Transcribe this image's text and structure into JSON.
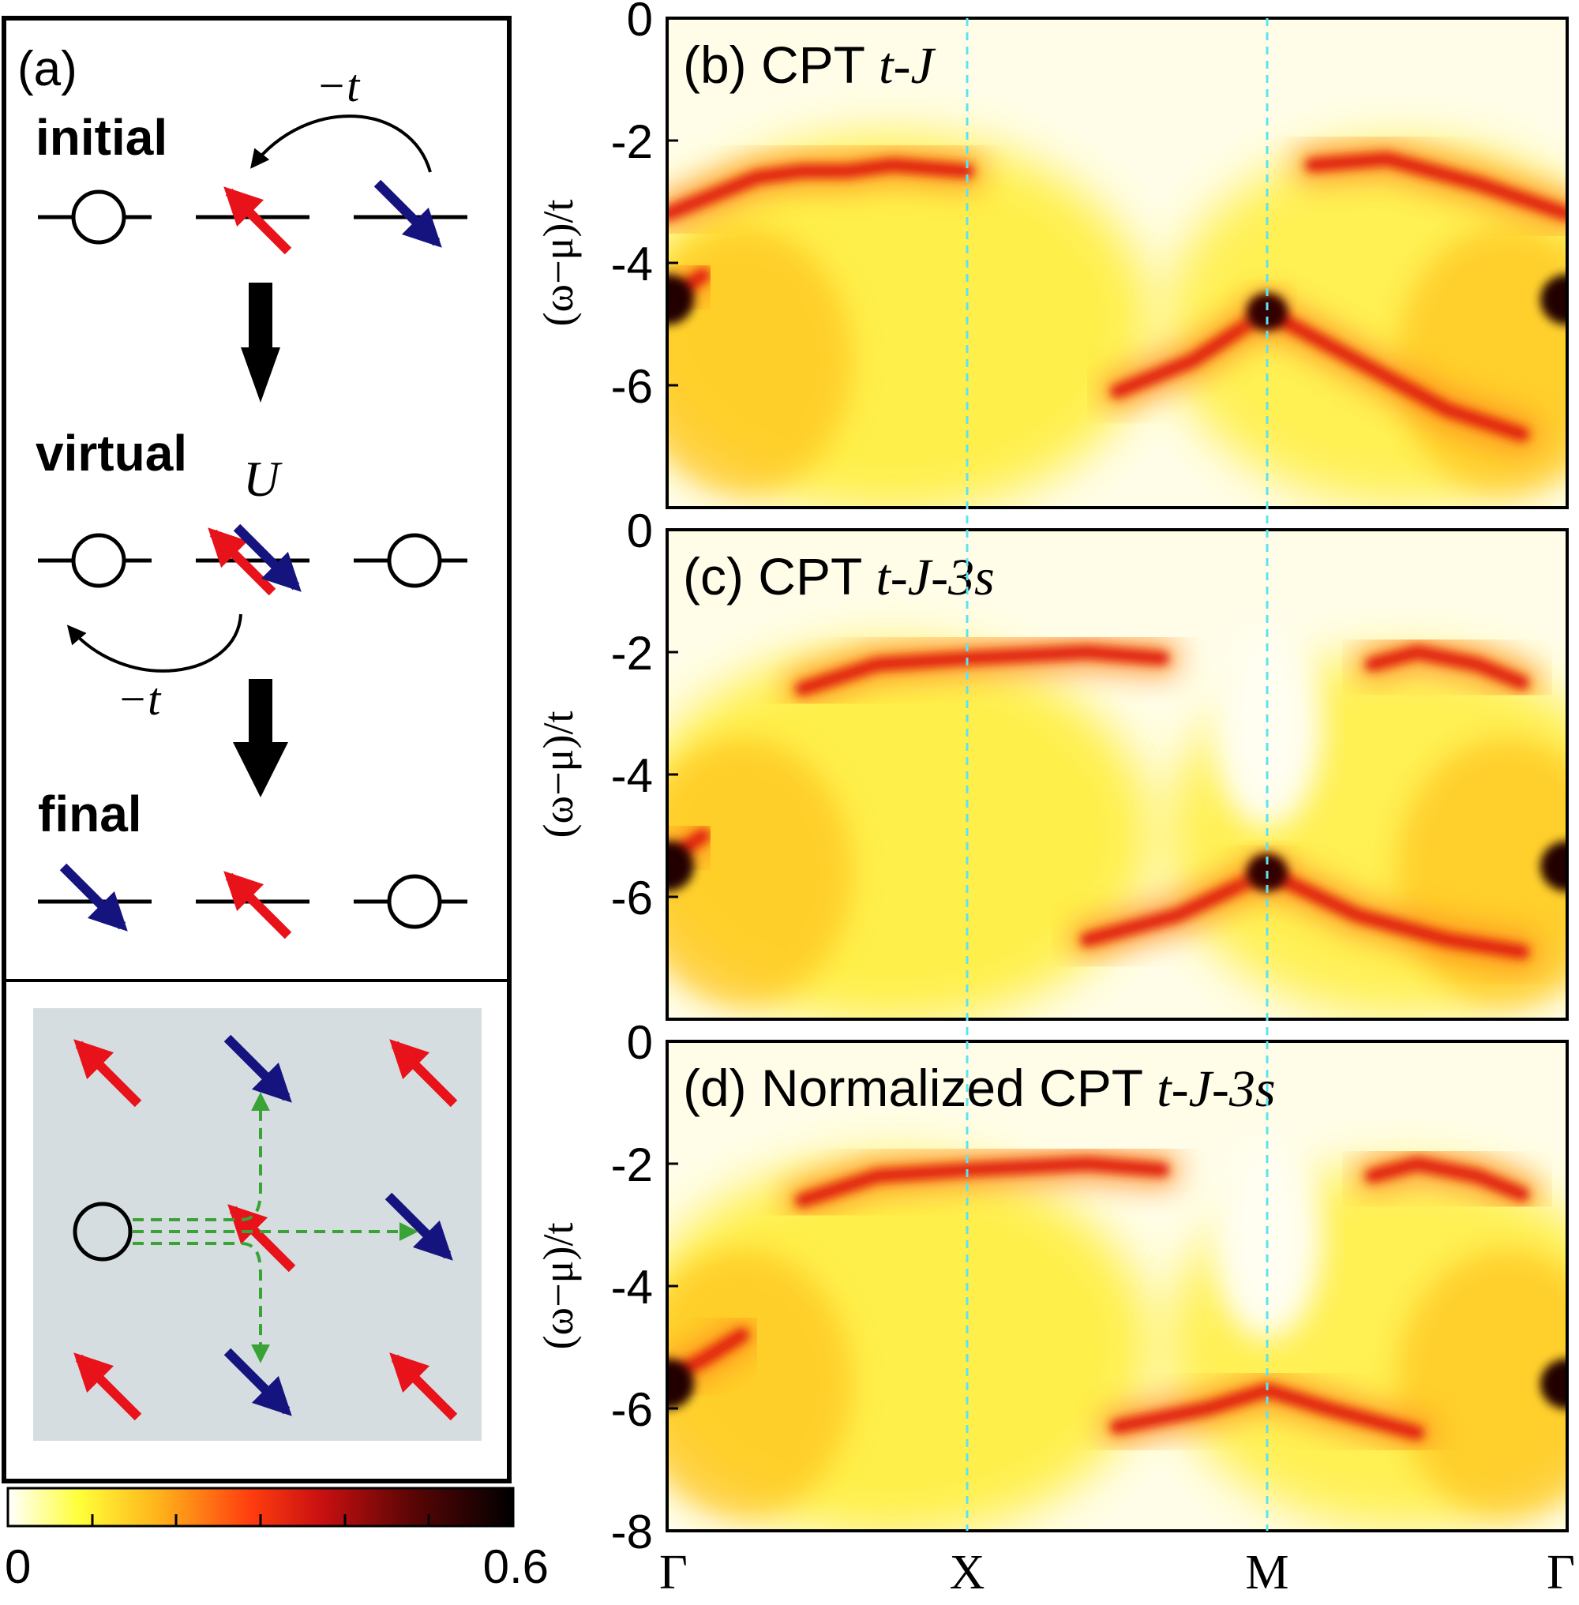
{
  "panel_a": {
    "label": "(a)",
    "hop_label": "−t",
    "states": {
      "initial": "initial",
      "virtual": "virtual",
      "final": "final"
    },
    "u_label": "U",
    "colors": {
      "up": "#e8121a",
      "down": "#15147f",
      "path": "#3aa335",
      "lattice_bg": "#d6dde1"
    }
  },
  "spectra": {
    "y_tick_labels": [
      "0",
      "-2",
      "-4",
      "-6",
      "-8"
    ],
    "y_label": "(ω−μ)/t",
    "x_tick_labels": [
      "Γ",
      "X",
      "M",
      "Γ"
    ],
    "panels": [
      {
        "label": "(b) CPT ",
        "model": "t-J"
      },
      {
        "label": "(c) CPT ",
        "model": "t-J-3s"
      },
      {
        "label": "(d) Normalized CPT ",
        "model": "t-J-3s"
      }
    ],
    "guide_line_color": "#5ee3f0"
  },
  "colorbar": {
    "min_label": "0",
    "max_label": "0.6",
    "stops": [
      "#ffffff",
      "#ffff3a",
      "#ffb21a",
      "#ff3d0f",
      "#c91010",
      "#5a0505",
      "#000000"
    ]
  },
  "chart_data": {
    "type": "heatmap",
    "x_tick_labels": [
      "Γ",
      "X",
      "M",
      "Γ"
    ],
    "ylabel": "(ω−μ)/t",
    "ylim": [
      -8,
      0
    ],
    "y_ticks": [
      0,
      -2,
      -4,
      -6,
      -8
    ],
    "color_range": [
      0,
      0.6
    ],
    "panels": [
      {
        "title": "(b) CPT t-J",
        "bands": [
          {
            "k": [
              0.0,
              0.15,
              0.3,
              0.45,
              0.6,
              0.75,
              1.0
            ],
            "omega": [
              -3.2,
              -2.9,
              -2.6,
              -2.5,
              -2.5,
              -2.4,
              -2.5
            ]
          },
          {
            "k": [
              1.5,
              1.75,
              2.0
            ],
            "omega": [
              -6.1,
              -5.6,
              -4.8
            ]
          },
          {
            "k": [
              2.0,
              2.3,
              2.6,
              2.85
            ],
            "omega": [
              -4.8,
              -5.6,
              -6.4,
              -6.8
            ]
          },
          {
            "k": [
              2.15,
              2.4,
              2.7,
              3.0
            ],
            "omega": [
              -2.4,
              -2.3,
              -2.7,
              -3.2
            ]
          },
          {
            "k": [
              0.0,
              0.12
            ],
            "omega": [
              -4.6,
              -4.2
            ]
          }
        ]
      },
      {
        "title": "(c) CPT t-J-3s",
        "bands": [
          {
            "k": [
              0.45,
              0.7,
              1.0,
              1.4,
              1.65
            ],
            "omega": [
              -2.6,
              -2.2,
              -2.1,
              -2.0,
              -2.1
            ]
          },
          {
            "k": [
              2.35,
              2.5,
              2.7,
              2.85
            ],
            "omega": [
              -2.2,
              -2.0,
              -2.2,
              -2.5
            ]
          },
          {
            "k": [
              1.4,
              1.7,
              2.0
            ],
            "omega": [
              -6.7,
              -6.3,
              -5.6
            ]
          },
          {
            "k": [
              2.0,
              2.3,
              2.6,
              2.85
            ],
            "omega": [
              -5.6,
              -6.3,
              -6.7,
              -6.9
            ]
          },
          {
            "k": [
              0.0,
              0.12
            ],
            "omega": [
              -5.4,
              -5.0
            ]
          }
        ]
      },
      {
        "title": "(d) Normalized CPT t-J-3s",
        "bands": [
          {
            "k": [
              0.45,
              0.7,
              1.0,
              1.4,
              1.65
            ],
            "omega": [
              -2.6,
              -2.2,
              -2.1,
              -2.0,
              -2.1
            ]
          },
          {
            "k": [
              2.35,
              2.5,
              2.7,
              2.85
            ],
            "omega": [
              -2.2,
              -2.0,
              -2.2,
              -2.5
            ]
          },
          {
            "k": [
              1.5,
              1.8,
              2.0,
              2.2,
              2.5
            ],
            "omega": [
              -6.3,
              -6.0,
              -5.7,
              -6.0,
              -6.4
            ]
          },
          {
            "k": [
              0.0,
              0.12,
              0.25
            ],
            "omega": [
              -5.5,
              -5.2,
              -4.8
            ]
          }
        ]
      }
    ]
  }
}
